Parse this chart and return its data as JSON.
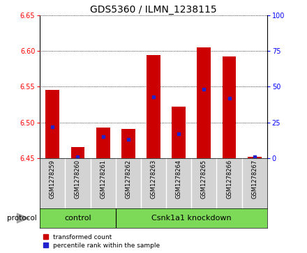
{
  "title": "GDS5360 / ILMN_1238115",
  "samples": [
    "GSM1278259",
    "GSM1278260",
    "GSM1278261",
    "GSM1278262",
    "GSM1278263",
    "GSM1278264",
    "GSM1278265",
    "GSM1278266",
    "GSM1278267"
  ],
  "transformed_counts": [
    6.545,
    6.465,
    6.493,
    6.491,
    6.594,
    6.522,
    6.605,
    6.592,
    6.452
  ],
  "percentile_ranks": [
    22,
    1,
    15,
    13,
    43,
    17,
    48,
    42,
    1
  ],
  "ylim_left": [
    6.45,
    6.65
  ],
  "ylim_right": [
    0,
    100
  ],
  "yticks_left": [
    6.45,
    6.5,
    6.55,
    6.6,
    6.65
  ],
  "yticks_right": [
    0,
    25,
    50,
    75,
    100
  ],
  "bar_color_red": "#cc0000",
  "bar_color_blue": "#2222cc",
  "bar_bottom": 6.45,
  "control_count": 3,
  "knockdown_count": 6,
  "control_label": "control",
  "knockdown_label": "Csnk1a1 knockdown",
  "protocol_label": "protocol",
  "legend_red": "transformed count",
  "legend_blue": "percentile rank within the sample",
  "sample_bg_color": "#d3d3d3",
  "group_bg_color": "#7dda58",
  "title_fontsize": 10,
  "tick_fontsize": 7,
  "bar_width": 0.55
}
